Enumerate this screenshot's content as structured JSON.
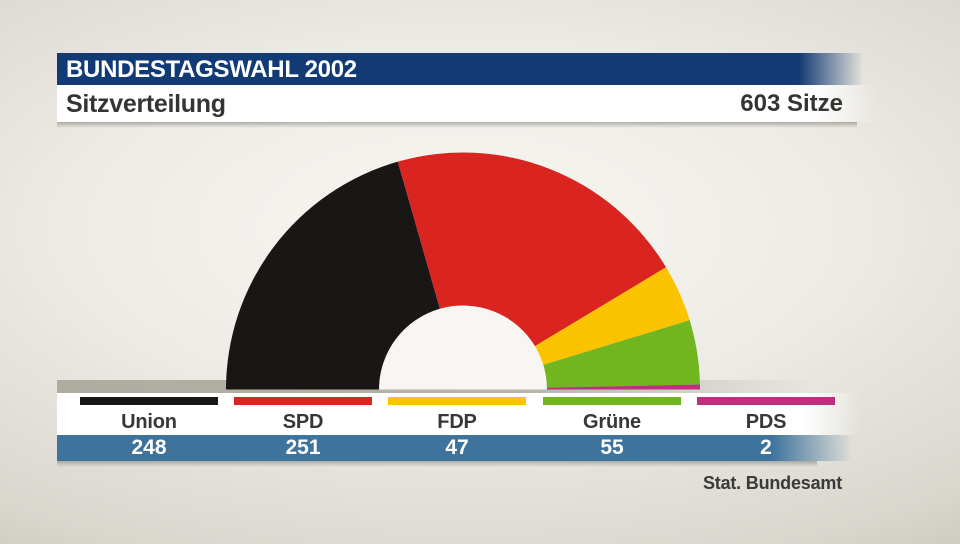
{
  "header": {
    "banner": "BUNDESTAGSWAHL 2002",
    "subtitle": "Sitzverteilung",
    "total_label": "603 Sitze"
  },
  "chart_data": {
    "type": "pie",
    "variant": "half_donut_180deg",
    "title": "Sitzverteilung",
    "total_seats": 603,
    "total_label": "603 Sitze",
    "categories": [
      "Union",
      "SPD",
      "FDP",
      "Grüne",
      "PDS"
    ],
    "values": [
      248,
      251,
      47,
      55,
      2
    ],
    "colors": [
      "#181716",
      "#da2420",
      "#fcc300",
      "#72b61f",
      "#c02e80"
    ],
    "legend_position": "bottom"
  },
  "legend": {
    "items": [
      {
        "label": "Union",
        "value": "248",
        "color": "#181716"
      },
      {
        "label": "SPD",
        "value": "251",
        "color": "#da2420"
      },
      {
        "label": "FDP",
        "value": "47",
        "color": "#fcc300"
      },
      {
        "label": "Grüne",
        "value": "55",
        "color": "#72b61f"
      },
      {
        "label": "PDS",
        "value": "2",
        "color": "#c02e80"
      }
    ]
  },
  "source": {
    "credit": "Stat. Bundesamt"
  },
  "colors": {
    "banner_navy": "#123a75",
    "counts_row_blue": "#3e739d",
    "baseline_strip_gray": "#b3b0a5",
    "text_dark": "#343434",
    "inner_hole": "#f7f6f2"
  }
}
